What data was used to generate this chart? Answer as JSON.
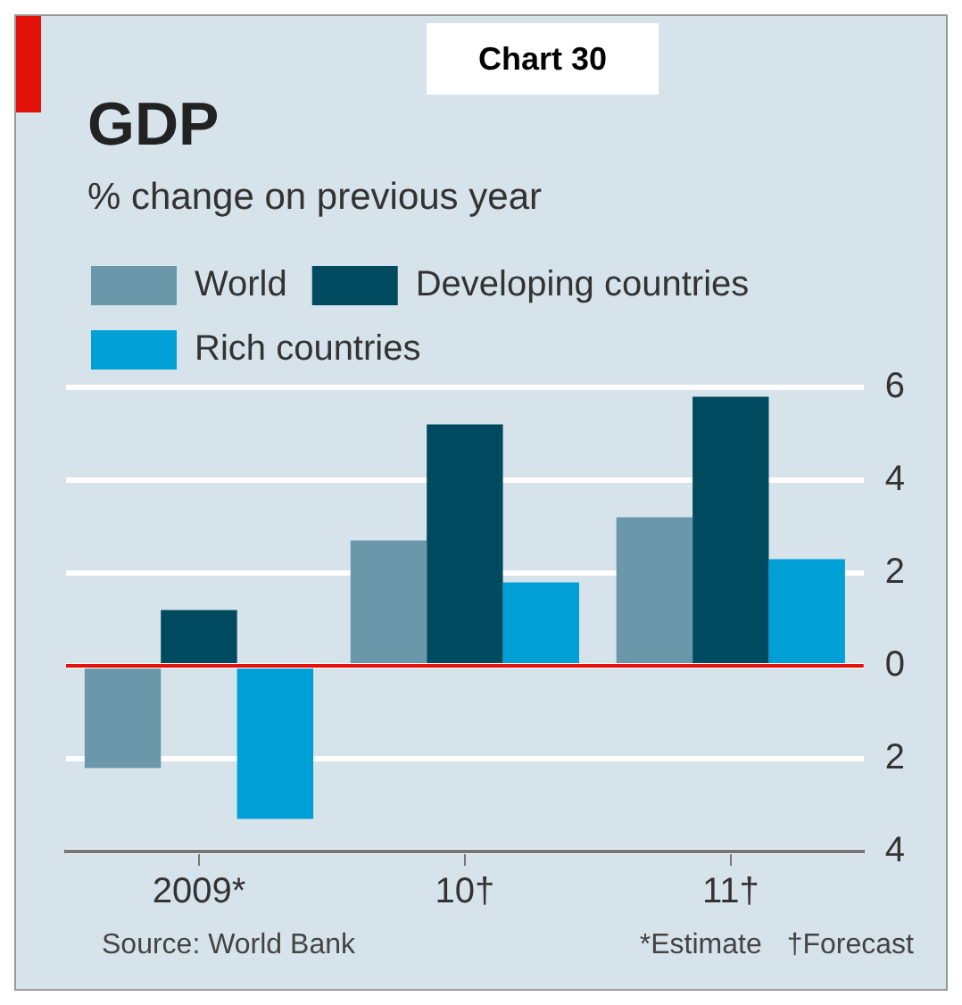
{
  "chart_data": {
    "type": "bar",
    "title": "GDP",
    "subtitle": "% change on previous year",
    "categories": [
      "2009*",
      "10†",
      "11†"
    ],
    "series": [
      {
        "name": "World",
        "color": "#6a97aa",
        "values": [
          -2.2,
          2.7,
          3.2
        ]
      },
      {
        "name": "Developing countries",
        "color": "#004a60",
        "values": [
          1.2,
          5.2,
          5.8
        ]
      },
      {
        "name": "Rich countries",
        "color": "#00a0d6",
        "values": [
          -3.3,
          1.8,
          2.3
        ]
      }
    ],
    "ylim": [
      -4,
      6
    ],
    "yticks": [
      {
        "value": -4,
        "label": "4"
      },
      {
        "value": -2,
        "label": "2"
      },
      0,
      2,
      4,
      6
    ],
    "grid": "y",
    "legend": "top left",
    "ref_lines": [
      {
        "axis": "y",
        "value": 0,
        "color": "#e3120b"
      }
    ],
    "annotations": [
      "Chart 30",
      "Source: World Bank",
      "*Estimate",
      "†Forecast"
    ]
  }
}
